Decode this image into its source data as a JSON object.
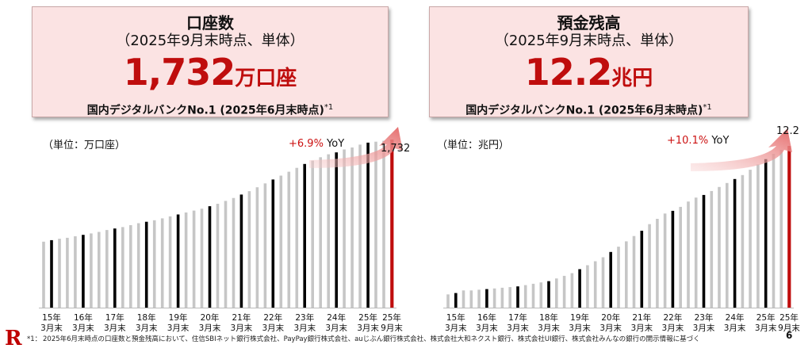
{
  "accounts": {
    "title": "口座数",
    "subtitle": "（2025年9月末時点、単体）",
    "value": "1,732",
    "value_unit": "万口座",
    "rank_text": "国内デジタルバンクNo.1 (2025年6月末時点)",
    "rank_note": "*1",
    "unit_label": "（単位：万口座）",
    "yoy_pct": "+6.9%",
    "yoy_suffix": " YoY"
  },
  "deposits": {
    "title": "預金残高",
    "subtitle": "（2025年9月末時点、単体）",
    "value": "12.2",
    "value_unit": "兆円",
    "rank_text": "国内デジタルバンクNo.1 (2025年6月末時点)",
    "rank_note": "*1",
    "unit_label": "（単位：兆円）",
    "yoy_pct": "+10.1%",
    "yoy_suffix": " YoY"
  },
  "chart_data": [
    {
      "type": "bar",
      "ylabel": "（単位：万口座）",
      "x_tick_labels": [
        [
          "15年",
          "3月末"
        ],
        [
          "16年",
          "3月末"
        ],
        [
          "17年",
          "3月末"
        ],
        [
          "18年",
          "3月末"
        ],
        [
          "19年",
          "3月末"
        ],
        [
          "20年",
          "3月末"
        ],
        [
          "21年",
          "3月末"
        ],
        [
          "22年",
          "3月末"
        ],
        [
          "23年",
          "3月末"
        ],
        [
          "24年",
          "3月末"
        ],
        [
          "25年",
          "3月末"
        ],
        [
          "25年",
          "9月末"
        ]
      ],
      "values": [
        680,
        695,
        710,
        720,
        735,
        750,
        765,
        780,
        800,
        815,
        830,
        850,
        870,
        885,
        900,
        920,
        940,
        960,
        980,
        1000,
        1020,
        1045,
        1070,
        1100,
        1130,
        1165,
        1200,
        1240,
        1280,
        1320,
        1360,
        1400,
        1440,
        1480,
        1515,
        1550,
        1580,
        1600,
        1630,
        1650,
        1680,
        1700,
        1710,
        1720,
        1732
      ],
      "highlight_color": "#000000",
      "normal_color": "#c6c6c6",
      "last_color": "#bf0d0d",
      "last_value_label": "1,732",
      "annotation": "+6.9% YoY"
    },
    {
      "type": "bar",
      "ylabel": "（単位：兆円）",
      "x_tick_labels": [
        [
          "15年",
          "3月末"
        ],
        [
          "16年",
          "3月末"
        ],
        [
          "17年",
          "3月末"
        ],
        [
          "18年",
          "3月末"
        ],
        [
          "19年",
          "3月末"
        ],
        [
          "20年",
          "3月末"
        ],
        [
          "21年",
          "3月末"
        ],
        [
          "22年",
          "3月末"
        ],
        [
          "23年",
          "3月末"
        ],
        [
          "24年",
          "3月末"
        ],
        [
          "25年",
          "3月末"
        ],
        [
          "25年",
          "9月末"
        ]
      ],
      "values": [
        1.0,
        1.1,
        1.3,
        1.3,
        1.35,
        1.4,
        1.45,
        1.5,
        1.55,
        1.6,
        1.7,
        1.8,
        1.9,
        2.0,
        2.2,
        2.4,
        2.6,
        2.9,
        3.2,
        3.5,
        3.8,
        4.2,
        4.6,
        5.0,
        5.4,
        5.8,
        6.3,
        6.7,
        7.1,
        7.3,
        7.6,
        8.0,
        8.3,
        8.5,
        8.8,
        9.1,
        9.4,
        9.7,
        10.0,
        10.4,
        10.8,
        11.2,
        11.6,
        11.9,
        12.2
      ],
      "highlight_color": "#000000",
      "normal_color": "#c6c6c6",
      "last_color": "#bf0d0d",
      "last_value_label": "12.2",
      "annotation": "+10.1% YoY"
    }
  ],
  "footnote": {
    "mark": "*1：",
    "text": "2025年6月末時点の口座数と預金残高において、住信SBIネット銀行株式会社、PayPay銀行株式会社、auじぶん銀行株式会社、株式会社大和ネクスト銀行、株式会社UI銀行、株式会社みんなの銀行の開示情報に基づく"
  },
  "logo": "R",
  "page_number": "6"
}
